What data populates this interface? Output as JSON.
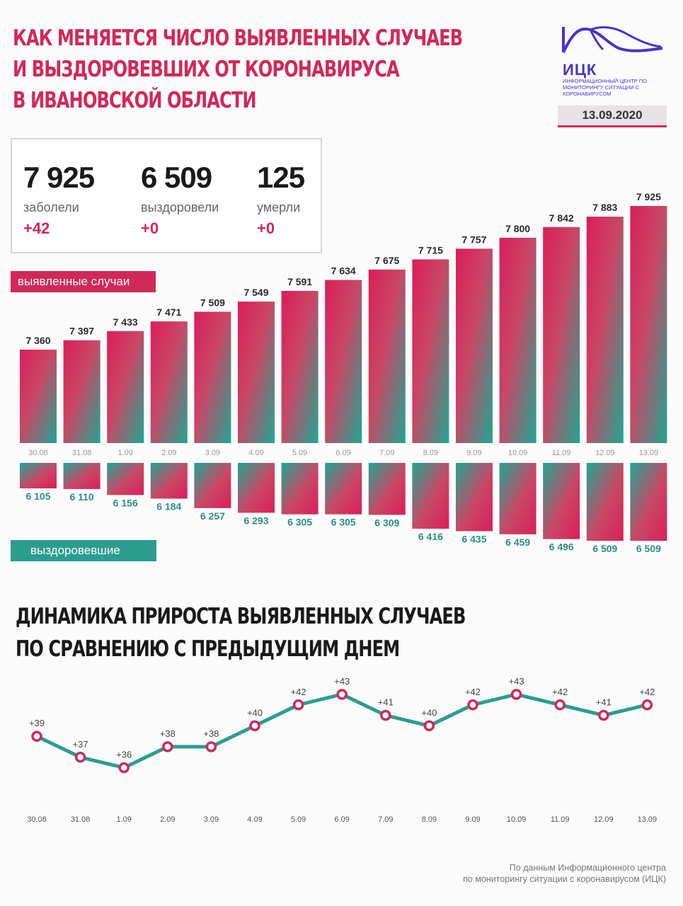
{
  "header": {
    "title_lines": [
      "КАК МЕНЯЕТСЯ ЧИСЛО ВЫЯВЛЕННЫХ СЛУЧАЕВ",
      "И ВЫЗДОРОВЕВШИХ ОТ КОРОНАВИРУСА",
      "В ИВАНОВСКОЙ ОБЛАСТИ"
    ],
    "logo_name": "ИЦК",
    "logo_sub": "ИНФОРМАЦИОННЫЙ ЦЕНТР ПО МОНИТОРИНГУ СИТУАЦИИ С КОРОНАВИРУСОМ",
    "date": "13.09.2020"
  },
  "stats": [
    {
      "value": "7 925",
      "label": "заболели",
      "delta": "+42"
    },
    {
      "value": "6 509",
      "label": "выздоровели",
      "delta": "+0"
    },
    {
      "value": "125",
      "label": "умерли",
      "delta": "+0"
    }
  ],
  "tags": {
    "cases": "выявленные случаи",
    "recovered": "выздоровевшие"
  },
  "section2": {
    "title_lines": [
      "ДИНАМИКА ПРИРОСТА ВЫЯВЛЕННЫХ СЛУЧАЕВ",
      "ПО СРАВНЕНИЮ С ПРЕДЫДУЩИМ ДНЕМ"
    ]
  },
  "footer": [
    "По данным Информационного центра",
    "по мониторингу ситуации с коронавирусом (ИЦК)"
  ],
  "colors": {
    "accent": "#d1285a",
    "teal": "#2a9d8f",
    "brand": "#4834c8"
  },
  "chart_data": [
    {
      "type": "bar",
      "categories": [
        "30.08",
        "31.08",
        "1.09",
        "2.09",
        "3.09",
        "4.09",
        "5.09",
        "6.09",
        "7.09",
        "8.09",
        "9.09",
        "10.09",
        "11.09",
        "12.09",
        "13.09"
      ],
      "series": [
        {
          "name": "выявленные случаи",
          "values": [
            7360,
            7397,
            7433,
            7471,
            7509,
            7549,
            7591,
            7634,
            7675,
            7715,
            7757,
            7800,
            7842,
            7883,
            7925
          ],
          "labels": [
            "7 360",
            "7 397",
            "7 433",
            "7 471",
            "7 509",
            "7 549",
            "7 591",
            "7 634",
            "7 675",
            "7 715",
            "7 757",
            "7 800",
            "7 842",
            "7 883",
            "7 925"
          ]
        },
        {
          "name": "выздоровевшие",
          "values": [
            6105,
            6110,
            6156,
            6184,
            6257,
            6293,
            6305,
            6305,
            6309,
            6416,
            6435,
            6459,
            6496,
            6509,
            6509
          ],
          "labels": [
            "6 105",
            "6 110",
            "6 156",
            "6 184",
            "6 257",
            "6 293",
            "6 305",
            "6 305",
            "6 309",
            "6 416",
            "6 435",
            "6 459",
            "6 496",
            "6 509",
            "6 509"
          ]
        }
      ]
    },
    {
      "type": "line",
      "categories": [
        "30.08",
        "31.08",
        "1.09",
        "2.09",
        "3.09",
        "4.09",
        "5.09",
        "6.09",
        "7.09",
        "8.09",
        "9.09",
        "10.09",
        "11.09",
        "12.09",
        "13.09"
      ],
      "values": [
        39,
        37,
        36,
        38,
        38,
        40,
        42,
        43,
        41,
        40,
        42,
        43,
        42,
        41,
        42
      ],
      "labels": [
        "+39",
        "+37",
        "+36",
        "+38",
        "+38",
        "+40",
        "+42",
        "+43",
        "+41",
        "+40",
        "+42",
        "+43",
        "+42",
        "+41",
        "+42"
      ]
    }
  ]
}
